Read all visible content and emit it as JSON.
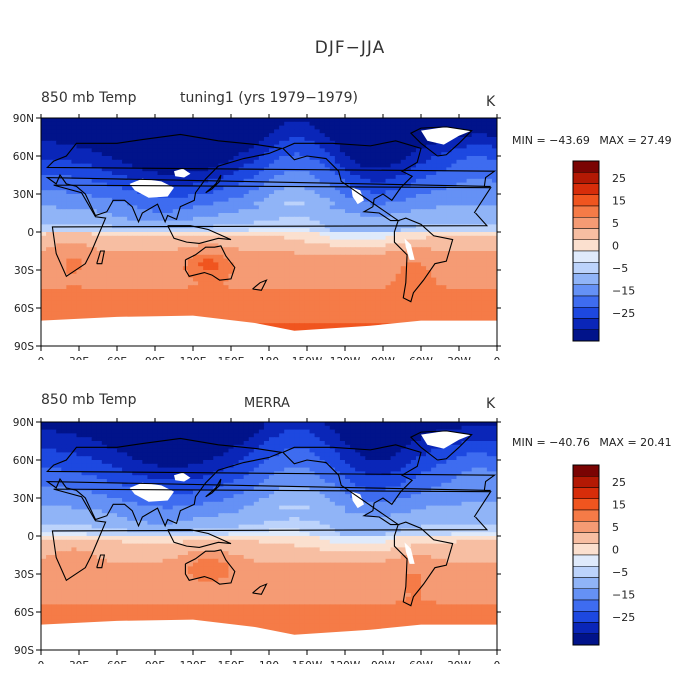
{
  "figure": {
    "title": "DJF−JJA"
  },
  "chart_data": [
    {
      "type": "heatmap",
      "title": "850 mb Temp",
      "subtitle": "tuning1 (yrs 1979−1979)",
      "units": "K",
      "min_label": "MIN = −43.69",
      "max_label": "MAX =  27.49",
      "min": -43.69,
      "max": 27.49,
      "x_ticks": [
        "0",
        "30E",
        "60E",
        "90E",
        "120E",
        "150E",
        "180",
        "150W",
        "120W",
        "90W",
        "60W",
        "30W",
        "0"
      ],
      "y_ticks": [
        "90N",
        "60N",
        "30N",
        "0",
        "30S",
        "60S",
        "90S"
      ],
      "xlim": [
        0,
        360
      ],
      "ylim": [
        -90,
        90
      ],
      "colorbar": {
        "labels": [
          "25",
          "15",
          "5",
          "0",
          "−5",
          "−15",
          "−25"
        ]
      }
    },
    {
      "type": "heatmap",
      "title": "850 mb Temp",
      "subtitle": "MERRA",
      "units": "K",
      "min_label": "MIN = −40.76",
      "max_label": "MAX =  20.41",
      "min": -40.76,
      "max": 20.41,
      "x_ticks": [
        "0",
        "30E",
        "60E",
        "90E",
        "120E",
        "150E",
        "180",
        "150W",
        "120W",
        "90W",
        "60W",
        "30W",
        "0"
      ],
      "y_ticks": [
        "90N",
        "60N",
        "30N",
        "0",
        "30S",
        "60S",
        "90S"
      ],
      "xlim": [
        0,
        360
      ],
      "ylim": [
        -90,
        90
      ],
      "colorbar": {
        "labels": [
          "25",
          "15",
          "5",
          "0",
          "−5",
          "−15",
          "−25"
        ]
      }
    }
  ],
  "colors": {
    "levels": [
      "#7a0403",
      "#b31904",
      "#d72d0a",
      "#f0551f",
      "#f57b47",
      "#f59b74",
      "#f7bea2",
      "#fbe0cf",
      "#dfeafb",
      "#bcd3fb",
      "#90b4f7",
      "#6591f5",
      "#3e6cf0",
      "#1d48e0",
      "#0a26b8",
      "#01138a"
    ]
  }
}
